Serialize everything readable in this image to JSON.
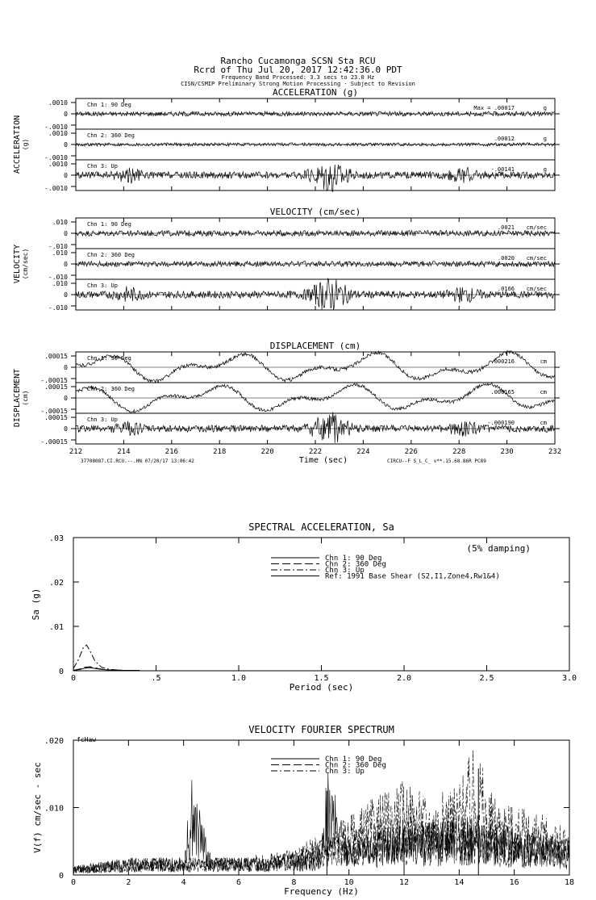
{
  "header": {
    "station": "Rancho Cucamonga    SCSN Sta RCU",
    "record": "Rcrd of Thu Jul 20, 2017 12:42:36.0 PDT",
    "band": "Frequency Band Processed: 3.3 secs to 23.0 Hz",
    "processing": "CISN/CSMIP Preliminary Strong Motion Processing - Subject to Revision"
  },
  "colors": {
    "ink": "#000000",
    "background": "#ffffff"
  },
  "chart_data": [
    {
      "type": "line",
      "title": "ACCELERATION (g)",
      "ylabel": "ACCELERATION",
      "yunit": "(g)",
      "xlim": [
        212,
        232
      ],
      "channels": [
        {
          "name": "Chn 1: 90 Deg",
          "peak_label": "Max =",
          "peak": ".00017",
          "unit": "g",
          "ticks": [
            ".0010",
            "0",
            "-.0010"
          ],
          "scale": 0.001,
          "amplitude": 0.00017,
          "burst": 0
        },
        {
          "name": "Chn 2: 360 Deg",
          "peak_label": "",
          "peak": ".00012",
          "unit": "g",
          "ticks": [
            ".0010",
            "0",
            "-.0010"
          ],
          "scale": 0.001,
          "amplitude": 0.00012,
          "burst": 0
        },
        {
          "name": "Chn 3: Up",
          "peak_label": "",
          "peak": "-.00141",
          "unit": "g",
          "ticks": [
            ".0010",
            "0",
            "-.0010"
          ],
          "scale": 0.001,
          "amplitude": 0.00141,
          "burst": 1
        }
      ]
    },
    {
      "type": "line",
      "title": "VELOCITY (cm/sec)",
      "ylabel": "VELOCITY",
      "yunit": "(cm/sec)",
      "xlim": [
        212,
        232
      ],
      "channels": [
        {
          "name": "Chn 1: 90 Deg",
          "peak_label": "",
          "peak": ".0021",
          "unit": "cm/sec",
          "ticks": [
            ".010",
            "0",
            "-.010"
          ],
          "scale": 0.01,
          "amplitude": 0.0021,
          "burst": 0
        },
        {
          "name": "Chn 2: 360 Deg",
          "peak_label": "",
          "peak": ".0020",
          "unit": "cm/sec",
          "ticks": [
            ".010",
            "0",
            "-.010"
          ],
          "scale": 0.01,
          "amplitude": 0.002,
          "burst": 0
        },
        {
          "name": "Chn 3: Up",
          "peak_label": "",
          "peak": ".0166",
          "unit": "cm/sec",
          "ticks": [
            ".010",
            "0",
            "-.010"
          ],
          "scale": 0.01,
          "amplitude": 0.0166,
          "burst": 1
        }
      ]
    },
    {
      "type": "line",
      "title": "DISPLACEMENT (cm)",
      "ylabel": "DISPLACEMENT",
      "yunit": "(cm)",
      "xlim": [
        212,
        232
      ],
      "xticks": [
        "212",
        "214",
        "216",
        "218",
        "220",
        "222",
        "224",
        "226",
        "228",
        "230",
        "232"
      ],
      "xlabel": "Time (sec)",
      "footer_left": "37708087.CI.RCU.--.HN 07/20/17 13:06:42",
      "footer_right": "CIRCU--F  S_L_C_   v**.15.68.86R PC89",
      "channels": [
        {
          "name": "Chn 1: 90 Deg",
          "peak_label": "",
          "peak": ".000216",
          "unit": "cm",
          "ticks": [
            ".00015",
            "0",
            "-.00015"
          ],
          "scale": 0.00015,
          "amplitude": 0.000216,
          "burst": 0
        },
        {
          "name": "Chn 2: 360 Deg",
          "peak_label": "",
          "peak": ".000165",
          "unit": "cm",
          "ticks": [
            ".00015",
            "0",
            "-.00015"
          ],
          "scale": 0.00015,
          "amplitude": 0.000165,
          "burst": 0
        },
        {
          "name": "Chn 3: Up",
          "peak_label": "",
          "peak": "-.000190",
          "unit": "cm",
          "ticks": [
            ".00015",
            "0",
            "-.00015"
          ],
          "scale": 0.00015,
          "amplitude": 0.00019,
          "burst": 1
        }
      ]
    },
    {
      "type": "line",
      "title": "SPECTRAL ACCELERATION, Sa",
      "xlabel": "Period (sec)",
      "ylabel": "Sa (g)",
      "xlim": [
        0,
        3.0
      ],
      "ylim": [
        0,
        0.03
      ],
      "xticks": [
        "0",
        ".5",
        "1.0",
        "1.5",
        "2.0",
        "2.5",
        "3.0"
      ],
      "yticks": [
        "0",
        ".01",
        ".02",
        ".03"
      ],
      "annotation": "(5% damping)",
      "legend": [
        "Chn 1: 90 Deg",
        "Chn 2: 360 Deg",
        "Chn 3: Up",
        "Ref: 1991 Base Shear (S2,I1,Zone4,Rw1&4)"
      ],
      "series": [
        {
          "name": "Chn 1: 90 Deg",
          "x": [
            0,
            0.04,
            0.07,
            0.1,
            0.15,
            0.2,
            0.3,
            0.4
          ],
          "y": [
            0.0001,
            0.0003,
            0.0006,
            0.0007,
            0.0004,
            0.0002,
            0.0001,
            0.0001
          ]
        },
        {
          "name": "Chn 2: 360 Deg",
          "x": [
            0,
            0.04,
            0.07,
            0.1,
            0.15,
            0.2,
            0.3,
            0.4
          ],
          "y": [
            0.0001,
            0.0004,
            0.0008,
            0.0009,
            0.0005,
            0.0002,
            0.0001,
            0.0001
          ]
        },
        {
          "name": "Chn 3: Up",
          "x": [
            0,
            0.03,
            0.06,
            0.08,
            0.1,
            0.13,
            0.17,
            0.22,
            0.3,
            0.4
          ],
          "y": [
            0.0005,
            0.0025,
            0.0052,
            0.0058,
            0.0045,
            0.0022,
            0.0008,
            0.0003,
            0.0001,
            0.0001
          ]
        },
        {
          "name": "Ref: 1991 Base Shear (S2,I1,Zone4,Rw1&4)",
          "x": [
            0,
            3.0
          ],
          "y": [
            0,
            0
          ]
        }
      ]
    },
    {
      "type": "line",
      "title": "VELOCITY FOURIER SPECTRUM",
      "xlabel": "Frequency (Hz)",
      "ylabel": "V(f)   cm/sec - sec",
      "corner_label": "fcHaw",
      "xlim": [
        0,
        18
      ],
      "ylim": [
        0,
        0.02
      ],
      "xticks": [
        "0",
        "2",
        "4",
        "6",
        "8",
        "10",
        "12",
        "14",
        "16",
        "18"
      ],
      "yticks": [
        "0",
        ".010",
        ".020"
      ],
      "legend": [
        "Chn 1: 90 Deg",
        "Chn 2: 360 Deg",
        "Chn 3: Up"
      ],
      "series": [
        {
          "name": "Chn 1: 90 Deg",
          "x": [
            0,
            1,
            2,
            3,
            4,
            4.3,
            5,
            6,
            7,
            8,
            9,
            9.2,
            10,
            11,
            12,
            13,
            14,
            15,
            16,
            17,
            18
          ],
          "y": [
            0.001,
            0.0015,
            0.002,
            0.002,
            0.002,
            0.0113,
            0.002,
            0.002,
            0.002,
            0.0025,
            0.003,
            0.0125,
            0.004,
            0.005,
            0.006,
            0.006,
            0.007,
            0.006,
            0.006,
            0.005,
            0.004
          ]
        },
        {
          "name": "Chn 2: 360 Deg",
          "x": [
            0,
            1,
            2,
            3,
            4,
            5,
            6,
            7,
            8,
            9,
            10,
            11,
            12,
            13,
            14,
            15,
            16,
            17,
            18
          ],
          "y": [
            0.001,
            0.0015,
            0.002,
            0.002,
            0.002,
            0.002,
            0.002,
            0.0025,
            0.003,
            0.004,
            0.005,
            0.006,
            0.007,
            0.006,
            0.007,
            0.006,
            0.005,
            0.005,
            0.004
          ]
        },
        {
          "name": "Chn 3: Up",
          "x": [
            0,
            1,
            2,
            3,
            4,
            5,
            6,
            7,
            8,
            9,
            10,
            11,
            12,
            13,
            14,
            14.7,
            15,
            16,
            17,
            18
          ],
          "y": [
            0.001,
            0.0015,
            0.002,
            0.002,
            0.002,
            0.002,
            0.002,
            0.0025,
            0.003,
            0.005,
            0.007,
            0.009,
            0.011,
            0.009,
            0.011,
            0.0158,
            0.01,
            0.008,
            0.007,
            0.005
          ]
        }
      ]
    }
  ]
}
